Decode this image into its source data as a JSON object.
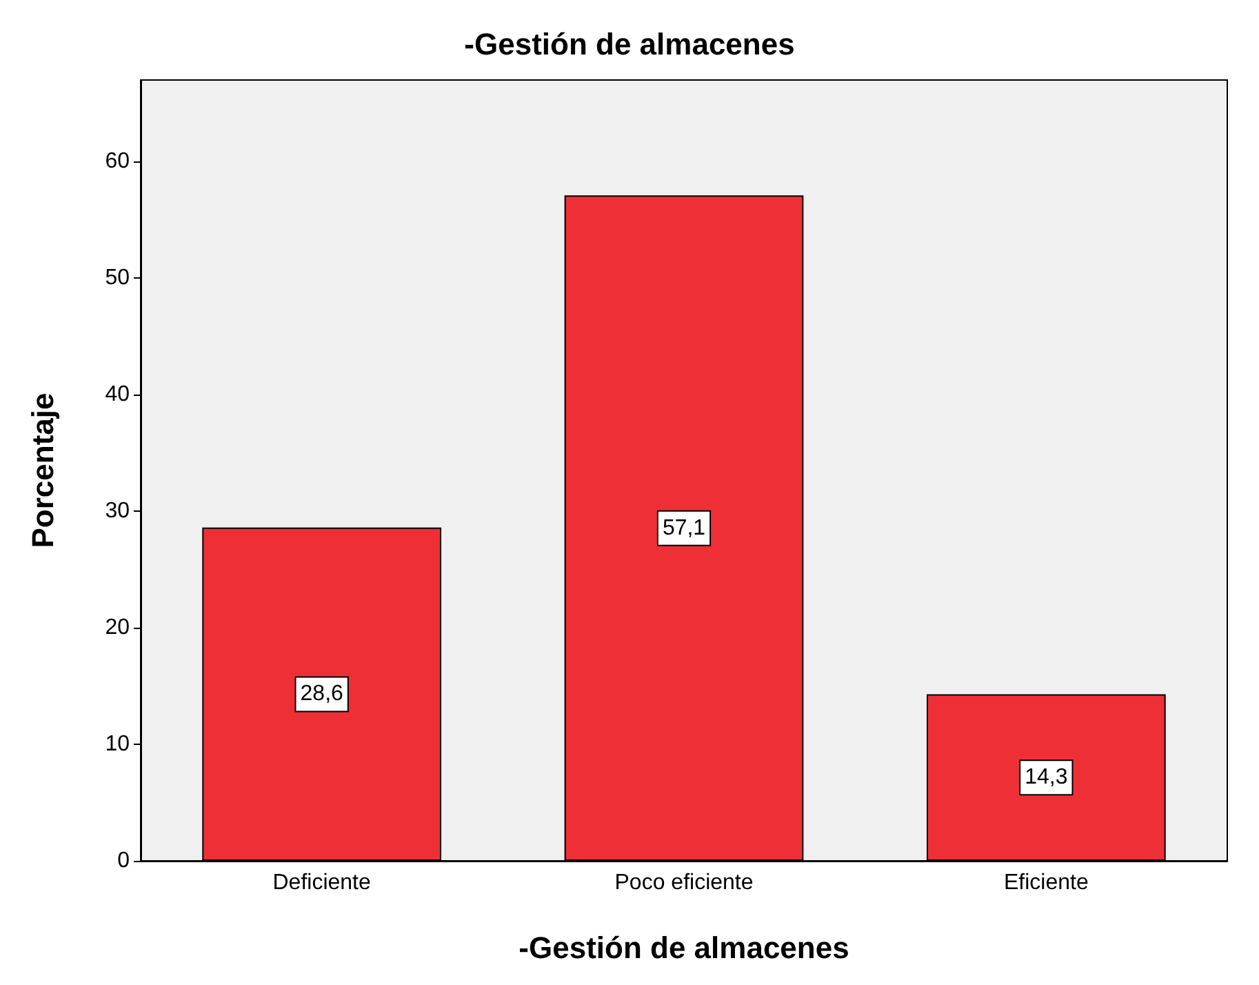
{
  "chart_data": {
    "type": "bar",
    "title": "-Gestión de almacenes",
    "xlabel": "-Gestión de almacenes",
    "ylabel": "Porcentaje",
    "categories": [
      "Deficiente",
      "Poco eficiente",
      "Eficiente"
    ],
    "values": [
      28.6,
      57.1,
      14.3
    ],
    "value_labels": [
      "28,6",
      "57,1",
      "14,3"
    ],
    "color": "#ee3036",
    "ylim": [
      0,
      67
    ],
    "yticks": [
      0,
      10,
      20,
      30,
      40,
      50,
      60
    ],
    "grid": false
  }
}
